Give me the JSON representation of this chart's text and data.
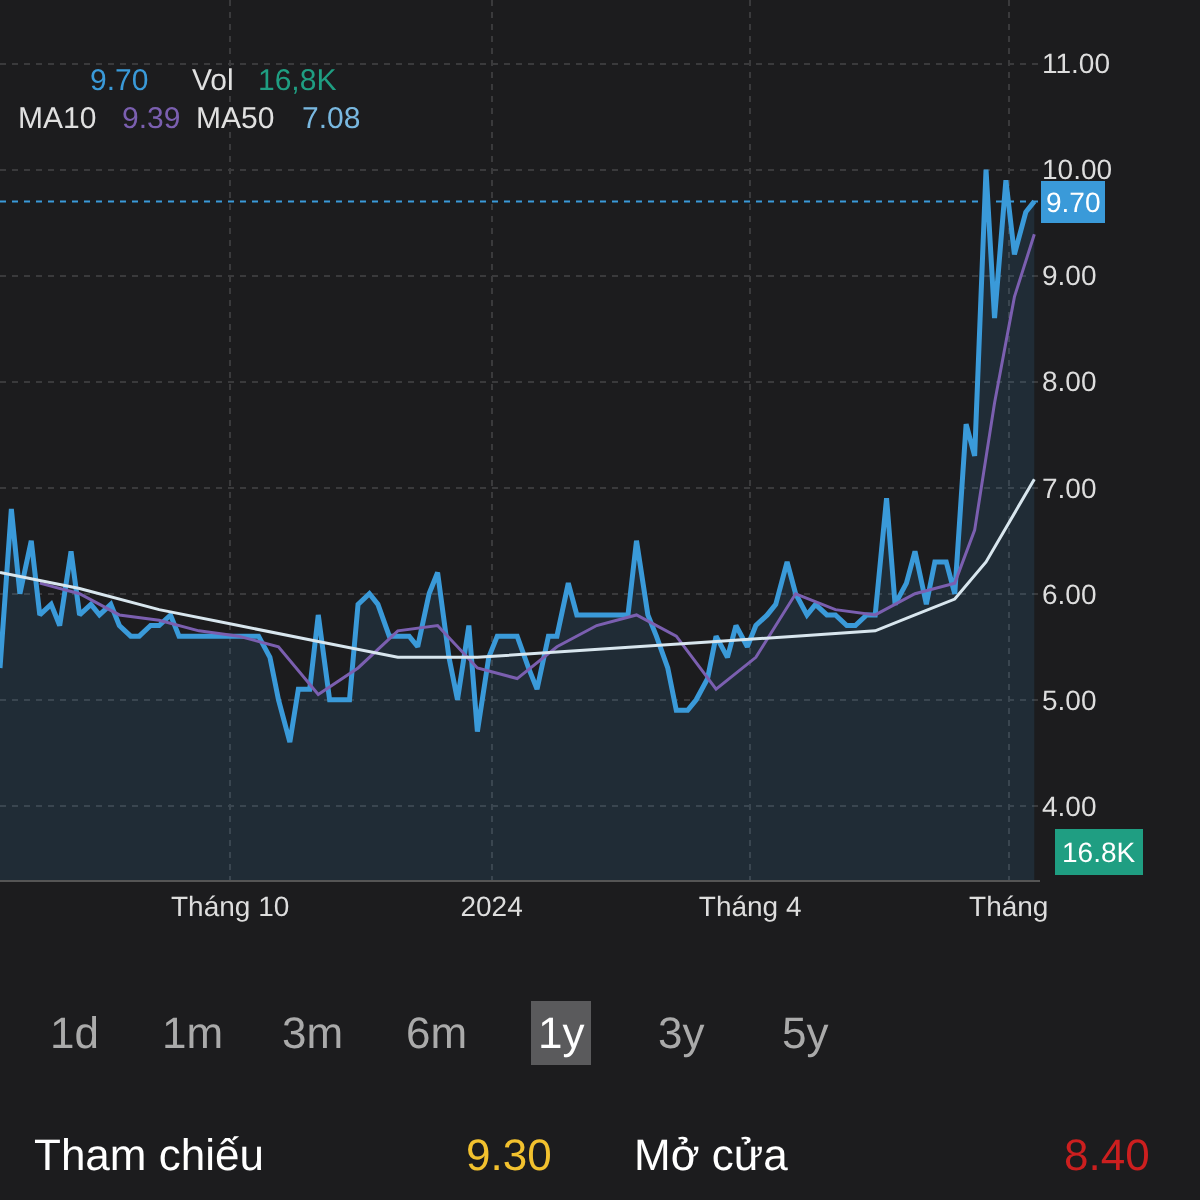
{
  "chart_data": {
    "type": "area",
    "x": [
      "2023-07-12",
      "2023-07-16",
      "2023-07-19",
      "2023-07-23",
      "2023-07-26",
      "2023-07-30",
      "2023-08-02",
      "2023-08-06",
      "2023-08-09",
      "2023-08-13",
      "2023-08-16",
      "2023-08-20",
      "2023-08-23",
      "2023-08-27",
      "2023-08-30",
      "2023-09-03",
      "2023-09-06",
      "2023-09-10",
      "2023-09-13",
      "2023-09-17",
      "2023-09-20",
      "2023-09-24",
      "2023-09-27",
      "2023-10-01",
      "2023-10-04",
      "2023-10-08",
      "2023-10-11",
      "2023-10-15",
      "2023-10-18",
      "2023-10-22",
      "2023-10-25",
      "2023-10-29",
      "2023-11-01",
      "2023-11-05",
      "2023-11-08",
      "2023-11-12",
      "2023-11-15",
      "2023-11-19",
      "2023-11-22",
      "2023-11-26",
      "2023-11-29",
      "2023-12-03",
      "2023-12-06",
      "2023-12-10",
      "2023-12-13",
      "2023-12-17",
      "2023-12-20",
      "2023-12-24",
      "2023-12-27",
      "2023-12-31",
      "2024-01-03",
      "2024-01-07",
      "2024-01-10",
      "2024-01-14",
      "2024-01-17",
      "2024-01-21",
      "2024-01-24",
      "2024-01-28",
      "2024-01-31",
      "2024-02-04",
      "2024-02-07",
      "2024-02-11",
      "2024-02-14",
      "2024-02-18",
      "2024-02-21",
      "2024-02-25",
      "2024-02-28",
      "2024-03-03",
      "2024-03-06",
      "2024-03-10",
      "2024-03-13",
      "2024-03-17",
      "2024-03-20",
      "2024-03-24",
      "2024-03-27",
      "2024-03-31",
      "2024-04-03",
      "2024-04-07",
      "2024-04-10",
      "2024-04-14",
      "2024-04-17",
      "2024-04-21",
      "2024-04-24",
      "2024-04-28",
      "2024-05-01",
      "2024-05-05",
      "2024-05-08",
      "2024-05-12",
      "2024-05-15",
      "2024-05-19",
      "2024-05-22",
      "2024-05-26",
      "2024-05-29",
      "2024-06-02",
      "2024-06-05",
      "2024-06-09",
      "2024-06-12",
      "2024-06-16",
      "2024-06-19",
      "2024-06-23",
      "2024-06-26",
      "2024-06-30",
      "2024-07-03",
      "2024-07-07",
      "2024-07-10"
    ],
    "series": [
      {
        "color": "#3a9ad9",
        "values": [
          5.3,
          6.8,
          6.0,
          6.5,
          5.8,
          5.9,
          5.7,
          6.4,
          5.8,
          5.9,
          5.8,
          5.9,
          5.7,
          5.6,
          5.6,
          5.7,
          5.7,
          5.8,
          5.6,
          5.6,
          5.6,
          5.6,
          5.6,
          5.6,
          5.6,
          5.6,
          5.6,
          5.4,
          5.0,
          4.6,
          5.1,
          5.1,
          5.8,
          5.0,
          5.0,
          5.0,
          5.9,
          6.0,
          5.9,
          5.6,
          5.6,
          5.6,
          5.5,
          6.0,
          6.2,
          5.4,
          5.0,
          5.7,
          4.7,
          5.4,
          5.6,
          5.6,
          5.6,
          5.3,
          5.1,
          5.6,
          5.6,
          6.1,
          5.8,
          5.8,
          5.8,
          5.8,
          5.8,
          5.8,
          6.5,
          5.8,
          5.6,
          5.3,
          4.9,
          4.9,
          5.0,
          5.2,
          5.6,
          5.4,
          5.7,
          5.5,
          5.7,
          5.8,
          5.9,
          6.3,
          6.0,
          5.8,
          5.9,
          5.8,
          5.8,
          5.7,
          5.7,
          5.8,
          5.8,
          6.9,
          5.9,
          6.1,
          6.4,
          5.9,
          6.3,
          6.3,
          6.0,
          7.6,
          7.3,
          10.0,
          8.6,
          9.9,
          9.2,
          9.6,
          9.7
        ]
      },
      {
        "type": "line",
        "color": "#7b5fb0",
        "x": [
          "2023-07-26",
          "2023-08-09",
          "2023-08-23",
          "2023-09-06",
          "2023-09-20",
          "2023-10-04",
          "2023-10-18",
          "2023-11-01",
          "2023-11-15",
          "2023-11-29",
          "2023-12-13",
          "2023-12-27",
          "2024-01-10",
          "2024-01-24",
          "2024-02-07",
          "2024-02-21",
          "2024-03-06",
          "2024-03-20",
          "2024-04-03",
          "2024-04-17",
          "2024-05-01",
          "2024-05-15",
          "2024-05-29",
          "2024-06-12",
          "2024-06-19",
          "2024-06-26",
          "2024-07-03",
          "2024-07-10"
        ],
        "values": [
          6.1,
          6.0,
          5.8,
          5.75,
          5.65,
          5.6,
          5.5,
          5.05,
          5.3,
          5.65,
          5.7,
          5.3,
          5.2,
          5.5,
          5.7,
          5.8,
          5.6,
          5.1,
          5.4,
          6.0,
          5.85,
          5.8,
          6.0,
          6.1,
          6.6,
          7.8,
          8.8,
          9.39
        ]
      },
      {
        "type": "line",
        "color": "#d8e6ee",
        "x": [
          "2023-07-12",
          "2023-08-09",
          "2023-09-06",
          "2023-10-04",
          "2023-11-01",
          "2023-11-29",
          "2023-12-27",
          "2024-01-24",
          "2024-02-21",
          "2024-03-20",
          "2024-04-17",
          "2024-05-15",
          "2024-05-29",
          "2024-06-12",
          "2024-06-23",
          "2024-07-10"
        ],
        "values": [
          6.2,
          6.05,
          5.85,
          5.7,
          5.55,
          5.4,
          5.4,
          5.45,
          5.5,
          5.55,
          5.6,
          5.65,
          5.8,
          5.95,
          6.3,
          7.08
        ]
      }
    ],
    "xlim": [
      "2023-07-12",
      "2024-07-12"
    ],
    "xticks": [
      {
        "value": "2023-10-01",
        "label": "Tháng 10"
      },
      {
        "value": "2024-01-01",
        "label": "2024"
      },
      {
        "value": "2024-04-01",
        "label": "Tháng 4"
      },
      {
        "value": "2024-07-01",
        "label": "Tháng"
      }
    ],
    "ylim": [
      3.3,
      11.6
    ],
    "yticks": [
      {
        "value": 4,
        "label": "4.00"
      },
      {
        "value": 5,
        "label": "5.00"
      },
      {
        "value": 6,
        "label": "6.00"
      },
      {
        "value": 7,
        "label": "7.00"
      },
      {
        "value": 8,
        "label": "8.00"
      },
      {
        "value": 9,
        "label": "9.00"
      },
      {
        "value": 10,
        "label": "10.00"
      },
      {
        "value": 11,
        "label": "11.00"
      }
    ],
    "ref_lines": [
      {
        "axis": "y",
        "value": 9.7,
        "label": "9.70",
        "color": "#3a9ad9",
        "line_style": "dotted"
      }
    ],
    "grid": true,
    "marker": "none",
    "annotations": [
      "9.70",
      "Vol",
      "16,8K",
      "MA10",
      "9.39",
      "MA50",
      "7.08",
      "16.8K",
      "1d",
      "1m",
      "3m",
      "6m",
      "1y",
      "3y",
      "5y",
      "Tham chiếu",
      "9.30",
      "Mở cửa",
      "8.40"
    ]
  }
}
